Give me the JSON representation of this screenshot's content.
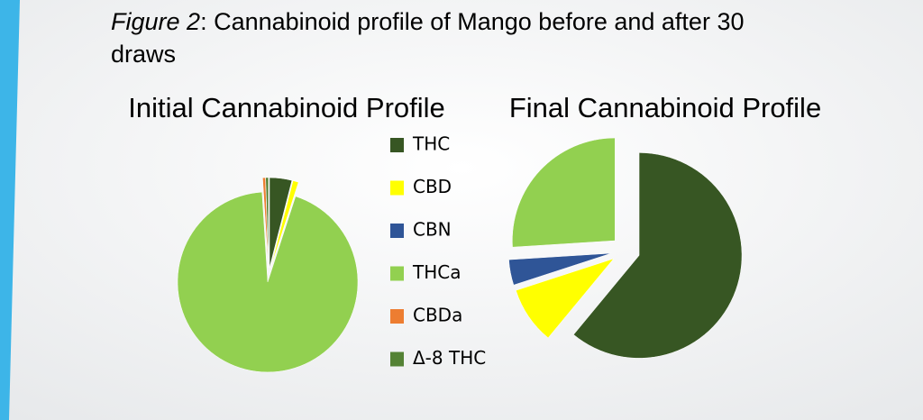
{
  "caption": {
    "label": "Figure 2",
    "text": ": Cannabinoid profile of Mango before and after 30",
    "text2": "draws"
  },
  "legend": {
    "names": [
      "THC",
      "CBD",
      "CBN",
      "THCa",
      "CBDa",
      "Δ-8 THC"
    ],
    "colors": [
      "#375623",
      "#ffff00",
      "#2f5597",
      "#92d050",
      "#ed7d31",
      "#548235"
    ]
  },
  "chart_data": [
    {
      "type": "pie",
      "title": "Initial Cannabinoid Profile",
      "values": [
        4,
        1,
        0,
        94,
        0.5,
        0.5
      ]
    },
    {
      "type": "pie",
      "title": "Final Cannabinoid Profile",
      "values": [
        61,
        9,
        4,
        26,
        0,
        0
      ]
    }
  ]
}
